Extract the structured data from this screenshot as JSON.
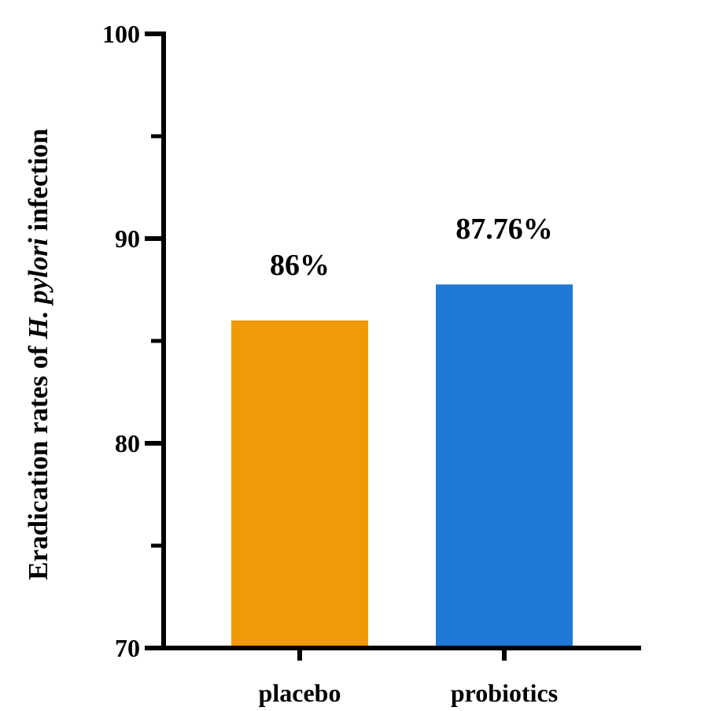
{
  "chart_data": {
    "type": "bar",
    "categories": [
      "placebo",
      "probiotics"
    ],
    "values": [
      86,
      87.76
    ],
    "data_labels": [
      "86%",
      "87.76%"
    ],
    "title": "",
    "xlabel": "",
    "ylabel": {
      "prefix": "Eradication rates of ",
      "italic": "H. pylori",
      "suffix": " infection"
    },
    "ylim": [
      70,
      100
    ],
    "yticks_major": [
      70,
      80,
      90,
      100
    ],
    "yticks_minor": [
      75,
      85,
      95
    ],
    "ytick_labels": [
      "70",
      "80",
      "90",
      "100"
    ],
    "colors": [
      "#F09A08",
      "#1E7AD6"
    ],
    "grid": false,
    "legend": "none"
  }
}
